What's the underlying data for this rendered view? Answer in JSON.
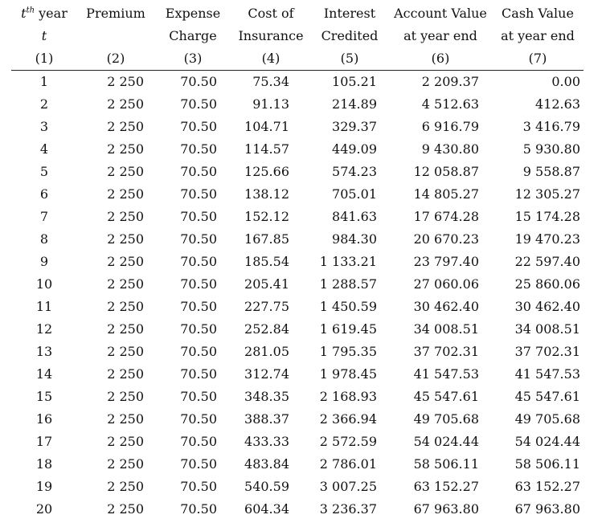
{
  "headers": {
    "row1": {
      "year": "year",
      "year_sup": "th",
      "year_t": "t",
      "premium": "Premium",
      "expense": "Expense",
      "cost": "Cost of",
      "interest": "Interest",
      "account": "Account Value",
      "cash": "Cash Value"
    },
    "row2": {
      "year": "t",
      "expense": "Charge",
      "cost": "Insurance",
      "interest": "Credited",
      "account": "at year end",
      "cash": "at year end"
    },
    "row3": [
      "(1)",
      "(2)",
      "(3)",
      "(4)",
      "(5)",
      "(6)",
      "(7)"
    ]
  },
  "rows": [
    [
      "1",
      "2 250",
      "70.50",
      "75.34",
      "105.21",
      "2 209.37",
      "0.00"
    ],
    [
      "2",
      "2 250",
      "70.50",
      "91.13",
      "214.89",
      "4 512.63",
      "412.63"
    ],
    [
      "3",
      "2 250",
      "70.50",
      "104.71",
      "329.37",
      "6 916.79",
      "3 416.79"
    ],
    [
      "4",
      "2 250",
      "70.50",
      "114.57",
      "449.09",
      "9 430.80",
      "5 930.80"
    ],
    [
      "5",
      "2 250",
      "70.50",
      "125.66",
      "574.23",
      "12 058.87",
      "9 558.87"
    ],
    [
      "6",
      "2 250",
      "70.50",
      "138.12",
      "705.01",
      "14 805.27",
      "12 305.27"
    ],
    [
      "7",
      "2 250",
      "70.50",
      "152.12",
      "841.63",
      "17 674.28",
      "15 174.28"
    ],
    [
      "8",
      "2 250",
      "70.50",
      "167.85",
      "984.30",
      "20 670.23",
      "19 470.23"
    ],
    [
      "9",
      "2 250",
      "70.50",
      "185.54",
      "1 133.21",
      "23 797.40",
      "22 597.40"
    ],
    [
      "10",
      "2 250",
      "70.50",
      "205.41",
      "1 288.57",
      "27 060.06",
      "25 860.06"
    ],
    [
      "11",
      "2 250",
      "70.50",
      "227.75",
      "1 450.59",
      "30 462.40",
      "30 462.40"
    ],
    [
      "12",
      "2 250",
      "70.50",
      "252.84",
      "1 619.45",
      "34 008.51",
      "34 008.51"
    ],
    [
      "13",
      "2 250",
      "70.50",
      "281.05",
      "1 795.35",
      "37 702.31",
      "37 702.31"
    ],
    [
      "14",
      "2 250",
      "70.50",
      "312.74",
      "1 978.45",
      "41 547.53",
      "41 547.53"
    ],
    [
      "15",
      "2 250",
      "70.50",
      "348.35",
      "2 168.93",
      "45 547.61",
      "45 547.61"
    ],
    [
      "16",
      "2 250",
      "70.50",
      "388.37",
      "2 366.94",
      "49 705.68",
      "49 705.68"
    ],
    [
      "17",
      "2 250",
      "70.50",
      "433.33",
      "2 572.59",
      "54 024.44",
      "54 024.44"
    ],
    [
      "18",
      "2 250",
      "70.50",
      "483.84",
      "2 786.01",
      "58 506.11",
      "58 506.11"
    ],
    [
      "19",
      "2 250",
      "70.50",
      "540.59",
      "3 007.25",
      "63 152.27",
      "63 152.27"
    ],
    [
      "20",
      "2 250",
      "70.50",
      "604.34",
      "3 236.37",
      "67 963.80",
      "67 963.80"
    ]
  ]
}
